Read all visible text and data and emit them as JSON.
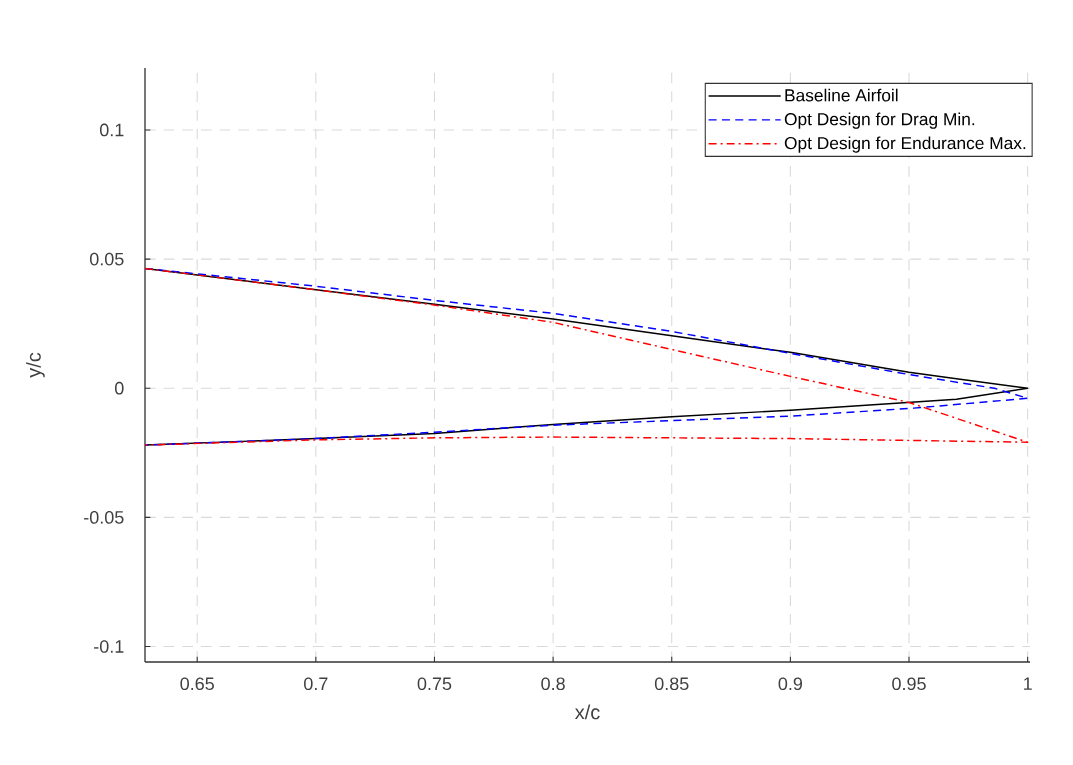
{
  "chart_data": {
    "type": "line",
    "xlabel": "x/c",
    "ylabel": "y/c",
    "xlim": [
      0.628,
      1.001
    ],
    "ylim": [
      -0.106,
      0.124
    ],
    "xticks": [
      0.65,
      0.7,
      0.75,
      0.8,
      0.85,
      0.9,
      0.95,
      1
    ],
    "yticks": [
      -0.1,
      -0.05,
      0,
      0.05,
      0.1
    ],
    "grid": true,
    "legend": "top right",
    "marker": "none",
    "series": [
      {
        "name": "Baseline Airfoil",
        "color": "#000000",
        "line_style": "solid",
        "x": [
          0.628,
          0.7,
          0.75,
          0.8,
          0.85,
          0.9,
          0.95,
          0.97,
          1.0,
          0.97,
          0.9,
          0.85,
          0.8,
          0.75,
          0.7,
          0.628
        ],
        "values": [
          0.0464,
          0.0381,
          0.0325,
          0.0268,
          0.0203,
          0.0139,
          0.0062,
          0.0037,
          0.0,
          -0.0043,
          -0.0085,
          -0.011,
          -0.014,
          -0.0175,
          -0.0195,
          -0.022
        ]
      },
      {
        "name": "Opt Design for Drag Min.",
        "color": "#0000ff",
        "line_style": "dashed",
        "x": [
          0.628,
          0.7,
          0.75,
          0.8,
          0.85,
          0.9,
          0.95,
          0.986,
          1.0,
          0.952,
          0.9,
          0.8,
          0.75,
          0.7,
          0.628
        ],
        "values": [
          0.0464,
          0.0395,
          0.034,
          0.029,
          0.022,
          0.0135,
          0.0053,
          0.0,
          -0.0039,
          -0.0077,
          -0.0108,
          -0.0143,
          -0.017,
          -0.0195,
          -0.022
        ]
      },
      {
        "name": "Opt Design for Endurance Max.",
        "color": "#ff0000",
        "line_style": "dashdot",
        "x": [
          0.628,
          0.7,
          0.75,
          0.8,
          0.85,
          0.9,
          0.95,
          1.0,
          0.9,
          0.8,
          0.75,
          0.7,
          0.628
        ],
        "values": [
          0.0464,
          0.0381,
          0.0322,
          0.0255,
          0.015,
          0.0046,
          -0.0055,
          -0.0209,
          -0.0195,
          -0.0189,
          -0.0192,
          -0.02,
          -0.022
        ]
      }
    ]
  }
}
